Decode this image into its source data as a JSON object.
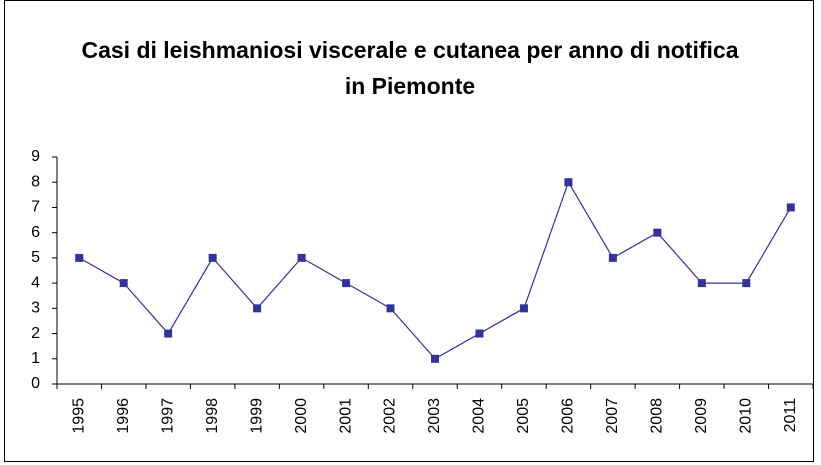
{
  "chart_data": {
    "type": "line",
    "title": "Casi di leishmaniosi viscerale e cutanea per anno di notifica in Piemonte",
    "categories": [
      "1995",
      "1996",
      "1997",
      "1998",
      "1999",
      "2000",
      "2001",
      "2002",
      "2003",
      "2004",
      "2005",
      "2006",
      "2007",
      "2008",
      "2009",
      "2010",
      "2011"
    ],
    "values": [
      5,
      4,
      2,
      5,
      3,
      5,
      4,
      3,
      1,
      2,
      3,
      8,
      5,
      6,
      4,
      4,
      7
    ],
    "color": "#333399",
    "ylim": [
      0,
      9
    ],
    "yticks": [
      0,
      1,
      2,
      3,
      4,
      5,
      6,
      7,
      8,
      9
    ],
    "grid": false
  }
}
